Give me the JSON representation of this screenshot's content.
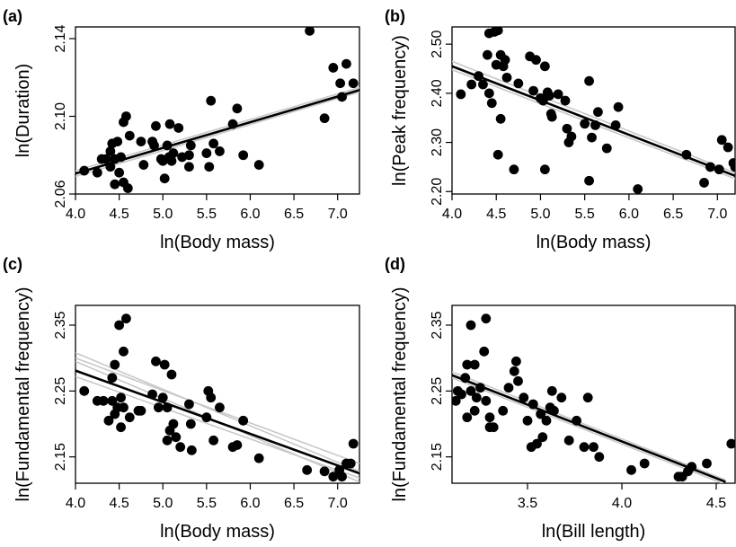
{
  "chart_data": [
    {
      "type": "scatter",
      "panel_label": "(a)",
      "xlabel": "ln(Body mass)",
      "ylabel": "ln(Duration)",
      "xlim": [
        4.0,
        7.25
      ],
      "ylim": [
        2.06,
        2.146
      ],
      "xticks": [
        4.0,
        4.5,
        5.0,
        5.5,
        6.0,
        6.5,
        7.0
      ],
      "xtick_labels": [
        "4.0",
        "4.5",
        "5.0",
        "5.5",
        "6.0",
        "6.5",
        "7.0"
      ],
      "yticks": [
        2.06,
        2.1,
        2.14
      ],
      "ytick_labels": [
        "2.06",
        "2.10",
        "2.14"
      ],
      "fit": [
        [
          4.0,
          2.0705
        ],
        [
          7.25,
          2.1135
        ]
      ],
      "ci_lines": [
        [
          [
            4.0,
            2.069
          ],
          [
            7.25,
            2.1125
          ]
        ],
        [
          [
            4.0,
            2.072
          ],
          [
            7.25,
            2.1148
          ]
        ]
      ],
      "points": [
        [
          4.1,
          2.072
        ],
        [
          4.25,
          2.071
        ],
        [
          4.3,
          2.078
        ],
        [
          4.35,
          2.078
        ],
        [
          4.4,
          2.082
        ],
        [
          4.4,
          2.074
        ],
        [
          4.42,
          2.086
        ],
        [
          4.45,
          2.078
        ],
        [
          4.45,
          2.065
        ],
        [
          4.48,
          2.087
        ],
        [
          4.5,
          2.071
        ],
        [
          4.52,
          2.079
        ],
        [
          4.55,
          2.097
        ],
        [
          4.55,
          2.066
        ],
        [
          4.58,
          2.1
        ],
        [
          4.6,
          2.063
        ],
        [
          4.62,
          2.09
        ],
        [
          4.75,
          2.087
        ],
        [
          4.78,
          2.075
        ],
        [
          4.88,
          2.087
        ],
        [
          4.9,
          2.085
        ],
        [
          4.92,
          2.095
        ],
        [
          4.98,
          2.078
        ],
        [
          5.0,
          2.077
        ],
        [
          5.02,
          2.068
        ],
        [
          5.05,
          2.085
        ],
        [
          5.07,
          2.079
        ],
        [
          5.08,
          2.096
        ],
        [
          5.1,
          2.077
        ],
        [
          5.12,
          2.081
        ],
        [
          5.18,
          2.094
        ],
        [
          5.22,
          2.079
        ],
        [
          5.3,
          2.074
        ],
        [
          5.3,
          2.08
        ],
        [
          5.32,
          2.085
        ],
        [
          5.5,
          2.081
        ],
        [
          5.53,
          2.074
        ],
        [
          5.55,
          2.108
        ],
        [
          5.58,
          2.086
        ],
        [
          5.65,
          2.082
        ],
        [
          5.8,
          2.096
        ],
        [
          5.85,
          2.104
        ],
        [
          5.92,
          2.08
        ],
        [
          6.1,
          2.075
        ],
        [
          6.68,
          2.144
        ],
        [
          6.85,
          2.099
        ],
        [
          6.95,
          2.125
        ],
        [
          7.03,
          2.117
        ],
        [
          7.05,
          2.11
        ],
        [
          7.1,
          2.127
        ],
        [
          7.18,
          2.117
        ]
      ]
    },
    {
      "type": "scatter",
      "panel_label": "(b)",
      "xlabel": "ln(Body mass)",
      "ylabel": "ln(Peak frequency)",
      "xlim": [
        4.0,
        7.2
      ],
      "ylim": [
        2.195,
        2.535
      ],
      "xticks": [
        4.0,
        4.5,
        5.0,
        5.5,
        6.0,
        6.5,
        7.0
      ],
      "xtick_labels": [
        "4.0",
        "4.5",
        "5.0",
        "5.5",
        "6.0",
        "6.5",
        "7.0"
      ],
      "yticks": [
        2.2,
        2.3,
        2.4,
        2.5
      ],
      "ytick_labels": [
        "2.20",
        "2.30",
        "2.40",
        "2.50"
      ],
      "fit": [
        [
          4.0,
          2.455
        ],
        [
          7.2,
          2.232
        ]
      ],
      "ci_lines": [
        [
          [
            4.0,
            2.465
          ],
          [
            7.2,
            2.238
          ]
        ],
        [
          [
            4.0,
            2.448
          ],
          [
            7.2,
            2.226
          ]
        ]
      ],
      "points": [
        [
          4.1,
          2.398
        ],
        [
          4.22,
          2.418
        ],
        [
          4.3,
          2.435
        ],
        [
          4.35,
          2.418
        ],
        [
          4.4,
          2.478
        ],
        [
          4.42,
          2.522
        ],
        [
          4.42,
          2.4
        ],
        [
          4.45,
          2.38
        ],
        [
          4.48,
          2.525
        ],
        [
          4.5,
          2.458
        ],
        [
          4.52,
          2.528
        ],
        [
          4.52,
          2.275
        ],
        [
          4.55,
          2.478
        ],
        [
          4.55,
          2.348
        ],
        [
          4.58,
          2.455
        ],
        [
          4.6,
          2.468
        ],
        [
          4.62,
          2.432
        ],
        [
          4.7,
          2.245
        ],
        [
          4.75,
          2.42
        ],
        [
          4.88,
          2.475
        ],
        [
          4.92,
          2.405
        ],
        [
          4.95,
          2.468
        ],
        [
          5.0,
          2.39
        ],
        [
          5.03,
          2.385
        ],
        [
          5.05,
          2.455
        ],
        [
          5.05,
          2.245
        ],
        [
          5.08,
          2.402
        ],
        [
          5.1,
          2.395
        ],
        [
          5.12,
          2.358
        ],
        [
          5.13,
          2.352
        ],
        [
          5.2,
          2.398
        ],
        [
          5.28,
          2.385
        ],
        [
          5.3,
          2.328
        ],
        [
          5.32,
          2.3
        ],
        [
          5.35,
          2.312
        ],
        [
          5.5,
          2.338
        ],
        [
          5.55,
          2.425
        ],
        [
          5.55,
          2.222
        ],
        [
          5.58,
          2.31
        ],
        [
          5.62,
          2.335
        ],
        [
          5.65,
          2.362
        ],
        [
          5.75,
          2.288
        ],
        [
          5.85,
          2.335
        ],
        [
          5.88,
          2.372
        ],
        [
          6.1,
          2.205
        ],
        [
          6.65,
          2.275
        ],
        [
          6.85,
          2.218
        ],
        [
          6.92,
          2.25
        ],
        [
          7.02,
          2.245
        ],
        [
          7.05,
          2.305
        ],
        [
          7.12,
          2.29
        ],
        [
          7.18,
          2.258
        ],
        [
          7.2,
          2.25
        ]
      ]
    },
    {
      "type": "scatter",
      "panel_label": "(c)",
      "xlabel": "ln(Body mass)",
      "ylabel": "ln(Fundamental frequency)",
      "xlim": [
        4.0,
        7.25
      ],
      "ylim": [
        2.11,
        2.38
      ],
      "xticks": [
        4.0,
        4.5,
        5.0,
        5.5,
        6.0,
        6.5,
        7.0
      ],
      "xtick_labels": [
        "4.0",
        "4.5",
        "5.0",
        "5.5",
        "6.0",
        "6.5",
        "7.0"
      ],
      "yticks": [
        2.15,
        2.25,
        2.35
      ],
      "ytick_labels": [
        "2.15",
        "2.25",
        "2.35"
      ],
      "fit": [
        [
          4.0,
          2.281
        ],
        [
          7.25,
          2.125
        ]
      ],
      "ci_lines": [
        [
          [
            4.0,
            2.308
          ],
          [
            7.25,
            2.128
          ]
        ],
        [
          [
            4.0,
            2.3
          ],
          [
            7.25,
            2.14
          ]
        ],
        [
          [
            4.0,
            2.272
          ],
          [
            7.25,
            2.118
          ]
        ],
        [
          [
            4.0,
            2.295
          ],
          [
            7.25,
            2.112
          ]
        ]
      ],
      "points": [
        [
          4.1,
          2.25
        ],
        [
          4.25,
          2.235
        ],
        [
          4.32,
          2.235
        ],
        [
          4.38,
          2.205
        ],
        [
          4.42,
          2.27
        ],
        [
          4.42,
          2.235
        ],
        [
          4.45,
          2.215
        ],
        [
          4.45,
          2.29
        ],
        [
          4.48,
          2.225
        ],
        [
          4.5,
          2.35
        ],
        [
          4.52,
          2.195
        ],
        [
          4.52,
          2.24
        ],
        [
          4.55,
          2.31
        ],
        [
          4.55,
          2.225
        ],
        [
          4.58,
          2.36
        ],
        [
          4.62,
          2.21
        ],
        [
          4.72,
          2.22
        ],
        [
          4.75,
          2.22
        ],
        [
          4.88,
          2.245
        ],
        [
          4.92,
          2.295
        ],
        [
          4.95,
          2.225
        ],
        [
          5.0,
          2.24
        ],
        [
          5.02,
          2.29
        ],
        [
          5.05,
          2.175
        ],
        [
          5.05,
          2.225
        ],
        [
          5.08,
          2.19
        ],
        [
          5.1,
          2.275
        ],
        [
          5.12,
          2.2
        ],
        [
          5.15,
          2.18
        ],
        [
          5.2,
          2.165
        ],
        [
          5.3,
          2.23
        ],
        [
          5.32,
          2.2
        ],
        [
          5.33,
          2.16
        ],
        [
          5.5,
          2.21
        ],
        [
          5.52,
          2.25
        ],
        [
          5.55,
          2.24
        ],
        [
          5.58,
          2.175
        ],
        [
          5.65,
          2.225
        ],
        [
          5.8,
          2.165
        ],
        [
          5.85,
          2.168
        ],
        [
          5.92,
          2.205
        ],
        [
          6.1,
          2.148
        ],
        [
          6.65,
          2.13
        ],
        [
          6.85,
          2.128
        ],
        [
          6.95,
          2.12
        ],
        [
          7.02,
          2.13
        ],
        [
          7.05,
          2.12
        ],
        [
          7.1,
          2.14
        ],
        [
          7.15,
          2.14
        ],
        [
          7.18,
          2.17
        ]
      ]
    },
    {
      "type": "scatter",
      "panel_label": "(d)",
      "xlabel": "ln(Bill length)",
      "ylabel": "ln(Fundamental frequency)",
      "xlim": [
        3.1,
        4.6
      ],
      "ylim": [
        2.11,
        2.38
      ],
      "xticks": [
        3.5,
        4.0,
        4.5
      ],
      "xtick_labels": [
        "3.5",
        "4.0",
        "4.5"
      ],
      "yticks": [
        2.15,
        2.25,
        2.35
      ],
      "ytick_labels": [
        "2.15",
        "2.25",
        "2.35"
      ],
      "fit": [
        [
          3.1,
          2.274
        ],
        [
          4.55,
          2.112
        ]
      ],
      "ci_lines": [
        [
          [
            3.1,
            2.279
          ],
          [
            4.55,
            2.115
          ]
        ],
        [
          [
            3.1,
            2.27
          ],
          [
            4.55,
            2.108
          ]
        ]
      ],
      "points": [
        [
          3.12,
          2.235
        ],
        [
          3.13,
          2.25
        ],
        [
          3.15,
          2.245
        ],
        [
          3.17,
          2.27
        ],
        [
          3.18,
          2.21
        ],
        [
          3.18,
          2.29
        ],
        [
          3.2,
          2.35
        ],
        [
          3.2,
          2.25
        ],
        [
          3.22,
          2.29
        ],
        [
          3.22,
          2.22
        ],
        [
          3.23,
          2.24
        ],
        [
          3.25,
          2.255
        ],
        [
          3.27,
          2.31
        ],
        [
          3.28,
          2.36
        ],
        [
          3.28,
          2.235
        ],
        [
          3.3,
          2.21
        ],
        [
          3.3,
          2.195
        ],
        [
          3.32,
          2.195
        ],
        [
          3.37,
          2.22
        ],
        [
          3.4,
          2.255
        ],
        [
          3.43,
          2.28
        ],
        [
          3.44,
          2.295
        ],
        [
          3.45,
          2.265
        ],
        [
          3.48,
          2.24
        ],
        [
          3.5,
          2.205
        ],
        [
          3.52,
          2.165
        ],
        [
          3.53,
          2.23
        ],
        [
          3.55,
          2.17
        ],
        [
          3.57,
          2.215
        ],
        [
          3.58,
          2.18
        ],
        [
          3.6,
          2.205
        ],
        [
          3.62,
          2.225
        ],
        [
          3.63,
          2.25
        ],
        [
          3.64,
          2.22
        ],
        [
          3.68,
          2.24
        ],
        [
          3.72,
          2.175
        ],
        [
          3.76,
          2.205
        ],
        [
          3.8,
          2.165
        ],
        [
          3.82,
          2.24
        ],
        [
          3.85,
          2.165
        ],
        [
          3.88,
          2.15
        ],
        [
          4.05,
          2.13
        ],
        [
          4.12,
          2.14
        ],
        [
          4.3,
          2.12
        ],
        [
          4.32,
          2.12
        ],
        [
          4.35,
          2.128
        ],
        [
          4.37,
          2.135
        ],
        [
          4.45,
          2.14
        ],
        [
          4.58,
          2.17
        ]
      ]
    }
  ]
}
